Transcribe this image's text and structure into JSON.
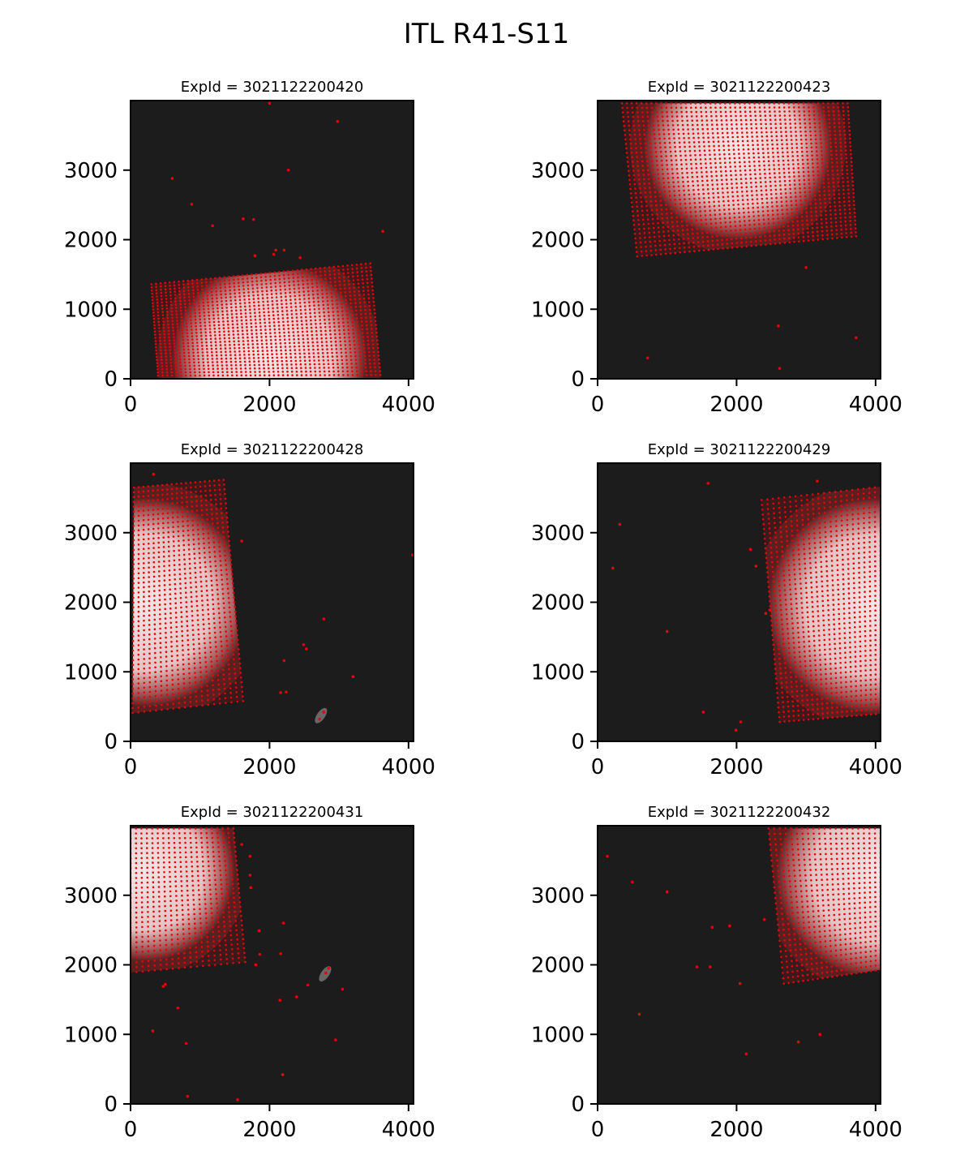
{
  "figure": {
    "title": "ITL R41-S11"
  },
  "chart_data": [
    {
      "type": "scatter",
      "title": "ExpId = 3021122200420",
      "xlim": [
        0,
        4072
      ],
      "ylim": [
        0,
        4000
      ],
      "xticks": [
        0,
        2000,
        4000
      ],
      "yticks": [
        0,
        1000,
        2000,
        3000
      ],
      "grid": false,
      "spot_grid": {
        "corners": [
          [
            300,
            1360
          ],
          [
            3450,
            1660
          ],
          [
            3600,
            0
          ],
          [
            400,
            0
          ]
        ],
        "rows": 31,
        "cols": 49,
        "point_color": "#e8000b"
      },
      "illumination": {
        "center": [
          2000,
          300
        ],
        "radius": 1400
      },
      "isolated_points": [
        [
          2000,
          3960
        ],
        [
          2980,
          3700
        ],
        [
          600,
          2880
        ],
        [
          2270,
          3000
        ],
        [
          880,
          2510
        ],
        [
          1180,
          2200
        ],
        [
          1620,
          2300
        ],
        [
          1770,
          2290
        ],
        [
          3630,
          2120
        ],
        [
          2060,
          1790
        ],
        [
          2090,
          1850
        ],
        [
          2210,
          1850
        ],
        [
          1790,
          1770
        ],
        [
          2440,
          1740
        ]
      ]
    },
    {
      "type": "scatter",
      "title": "ExpId = 3021122200423",
      "xlim": [
        0,
        4072
      ],
      "ylim": [
        0,
        4000
      ],
      "xticks": [
        0,
        2000,
        4000
      ],
      "yticks": [
        0,
        1000,
        2000,
        3000
      ],
      "grid": false,
      "spot_grid": {
        "corners": [
          [
            350,
            3960
          ],
          [
            3600,
            3960
          ],
          [
            3720,
            2050
          ],
          [
            570,
            1760
          ]
        ],
        "rows": 35,
        "cols": 47,
        "point_color": "#e8000b"
      },
      "illumination": {
        "center": [
          2020,
          3350
        ],
        "radius": 1350
      },
      "isolated_points": [
        [
          3000,
          1600
        ],
        [
          2600,
          760
        ],
        [
          3720,
          590
        ],
        [
          720,
          300
        ],
        [
          2620,
          150
        ]
      ]
    },
    {
      "type": "scatter",
      "title": "ExpId = 3021122200428",
      "xlim": [
        0,
        4072
      ],
      "ylim": [
        0,
        4000
      ],
      "xticks": [
        0,
        2000,
        4000
      ],
      "yticks": [
        0,
        1000,
        2000,
        3000
      ],
      "grid": false,
      "spot_grid": {
        "corners": [
          [
            50,
            3650
          ],
          [
            1340,
            3760
          ],
          [
            1620,
            580
          ],
          [
            30,
            410
          ]
        ],
        "rows": 48,
        "cols": 20,
        "point_color": "#e8000b"
      },
      "illumination": {
        "center": [
          200,
          2000
        ],
        "radius": 1500
      },
      "isolated_points": [
        [
          330,
          3840
        ],
        [
          1600,
          2880
        ],
        [
          4060,
          2680
        ],
        [
          2780,
          1760
        ],
        [
          2490,
          1390
        ],
        [
          2530,
          1330
        ],
        [
          2210,
          1160
        ],
        [
          3200,
          930
        ],
        [
          2240,
          710
        ],
        [
          2160,
          700
        ],
        [
          2780,
          420
        ],
        [
          2720,
          320
        ]
      ],
      "extra_features": [
        {
          "center": [
            2740,
            370
          ],
          "note": ""
        }
      ]
    },
    {
      "type": "scatter",
      "title": "ExpId = 3021122200429",
      "xlim": [
        0,
        4072
      ],
      "ylim": [
        0,
        4000
      ],
      "xticks": [
        0,
        2000,
        4000
      ],
      "yticks": [
        0,
        1000,
        2000,
        3000
      ],
      "grid": false,
      "spot_grid": {
        "corners": [
          [
            2360,
            3470
          ],
          [
            4072,
            3660
          ],
          [
            4072,
            400
          ],
          [
            2620,
            280
          ]
        ],
        "rows": 47,
        "cols": 22,
        "point_color": "#e8000b"
      },
      "illumination": {
        "center": [
          4000,
          1950
        ],
        "radius": 1550
      },
      "isolated_points": [
        [
          1590,
          3710
        ],
        [
          3160,
          3740
        ],
        [
          320,
          3120
        ],
        [
          2200,
          2760
        ],
        [
          220,
          2490
        ],
        [
          1000,
          1580
        ],
        [
          2420,
          1840
        ],
        [
          2480,
          1890
        ],
        [
          1520,
          420
        ],
        [
          2060,
          280
        ],
        [
          1990,
          160
        ],
        [
          2280,
          2520
        ]
      ]
    },
    {
      "type": "scatter",
      "title": "ExpId = 3021122200431",
      "xlim": [
        0,
        4072
      ],
      "ylim": [
        0,
        4000
      ],
      "xticks": [
        0,
        2000,
        4000
      ],
      "yticks": [
        0,
        1000,
        2000,
        3000
      ],
      "grid": false,
      "spot_grid": {
        "corners": [
          [
            0,
            3960
          ],
          [
            1480,
            3960
          ],
          [
            1650,
            2040
          ],
          [
            0,
            1890
          ]
        ],
        "rows": 30,
        "cols": 20,
        "point_color": "#e8000b"
      },
      "illumination": {
        "center": [
          200,
          3350
        ],
        "radius": 1300
      },
      "isolated_points": [
        [
          1600,
          3730
        ],
        [
          1720,
          3560
        ],
        [
          1720,
          3290
        ],
        [
          1730,
          3110
        ],
        [
          2200,
          2600
        ],
        [
          1850,
          2490
        ],
        [
          1860,
          2150
        ],
        [
          2160,
          2160
        ],
        [
          1800,
          2000
        ],
        [
          2850,
          1950
        ],
        [
          2810,
          1880
        ],
        [
          500,
          1720
        ],
        [
          470,
          1690
        ],
        [
          2550,
          1710
        ],
        [
          3050,
          1650
        ],
        [
          2390,
          1540
        ],
        [
          2150,
          1490
        ],
        [
          680,
          1380
        ],
        [
          320,
          1050
        ],
        [
          2950,
          920
        ],
        [
          800,
          870
        ],
        [
          2190,
          420
        ],
        [
          820,
          110
        ],
        [
          1540,
          60
        ]
      ],
      "extra_features": [
        {
          "center": [
            2800,
            1870
          ],
          "note": ""
        }
      ]
    },
    {
      "type": "scatter",
      "title": "ExpId = 3021122200432",
      "xlim": [
        0,
        4072
      ],
      "ylim": [
        0,
        4000
      ],
      "xticks": [
        0,
        2000,
        4000
      ],
      "yticks": [
        0,
        1000,
        2000,
        3000
      ],
      "grid": false,
      "spot_grid": {
        "corners": [
          [
            2460,
            3960
          ],
          [
            4072,
            3960
          ],
          [
            4072,
            1930
          ],
          [
            2680,
            1730
          ]
        ],
        "rows": 30,
        "cols": 21,
        "point_color": "#e8000b"
      },
      "illumination": {
        "center": [
          4072,
          3300
        ],
        "radius": 1500
      },
      "isolated_points": [
        [
          140,
          3560
        ],
        [
          500,
          3190
        ],
        [
          1000,
          3050
        ],
        [
          1650,
          2540
        ],
        [
          1900,
          2560
        ],
        [
          2400,
          2650
        ],
        [
          1430,
          1970
        ],
        [
          1620,
          1970
        ],
        [
          2050,
          1730
        ],
        [
          600,
          1290
        ],
        [
          2890,
          890
        ],
        [
          3200,
          1000
        ],
        [
          2140,
          720
        ]
      ]
    }
  ]
}
